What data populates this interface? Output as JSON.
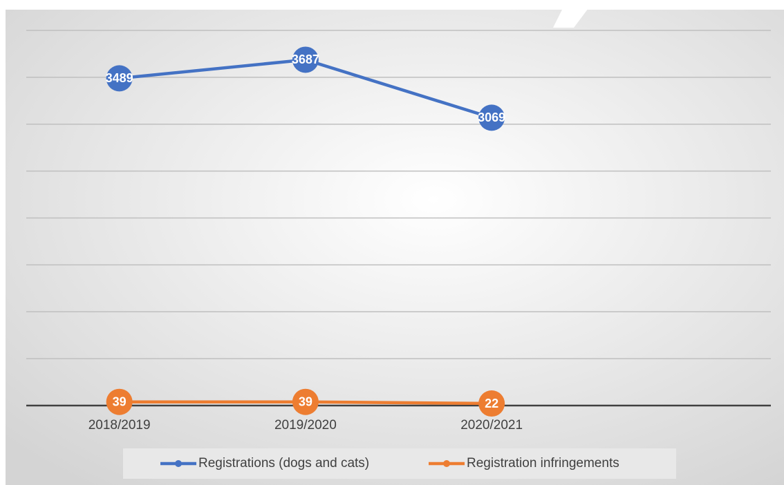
{
  "chart_data": {
    "type": "line",
    "categories": [
      "2018/2019",
      "2019/2020",
      "2020/2021",
      null
    ],
    "series": [
      {
        "name": "Registrations (dogs and cats)",
        "color": "#4472c4",
        "values": [
          3489,
          3687,
          3069,
          null
        ]
      },
      {
        "name": "Registration infringements",
        "color": "#ed7d31",
        "values": [
          39,
          39,
          22,
          null
        ]
      }
    ],
    "ylim": [
      0,
      4000
    ],
    "yticks": [
      0,
      500,
      1000,
      1500,
      2000,
      2500,
      3000,
      3500,
      4000
    ],
    "grid": true,
    "legend": "bottom"
  }
}
